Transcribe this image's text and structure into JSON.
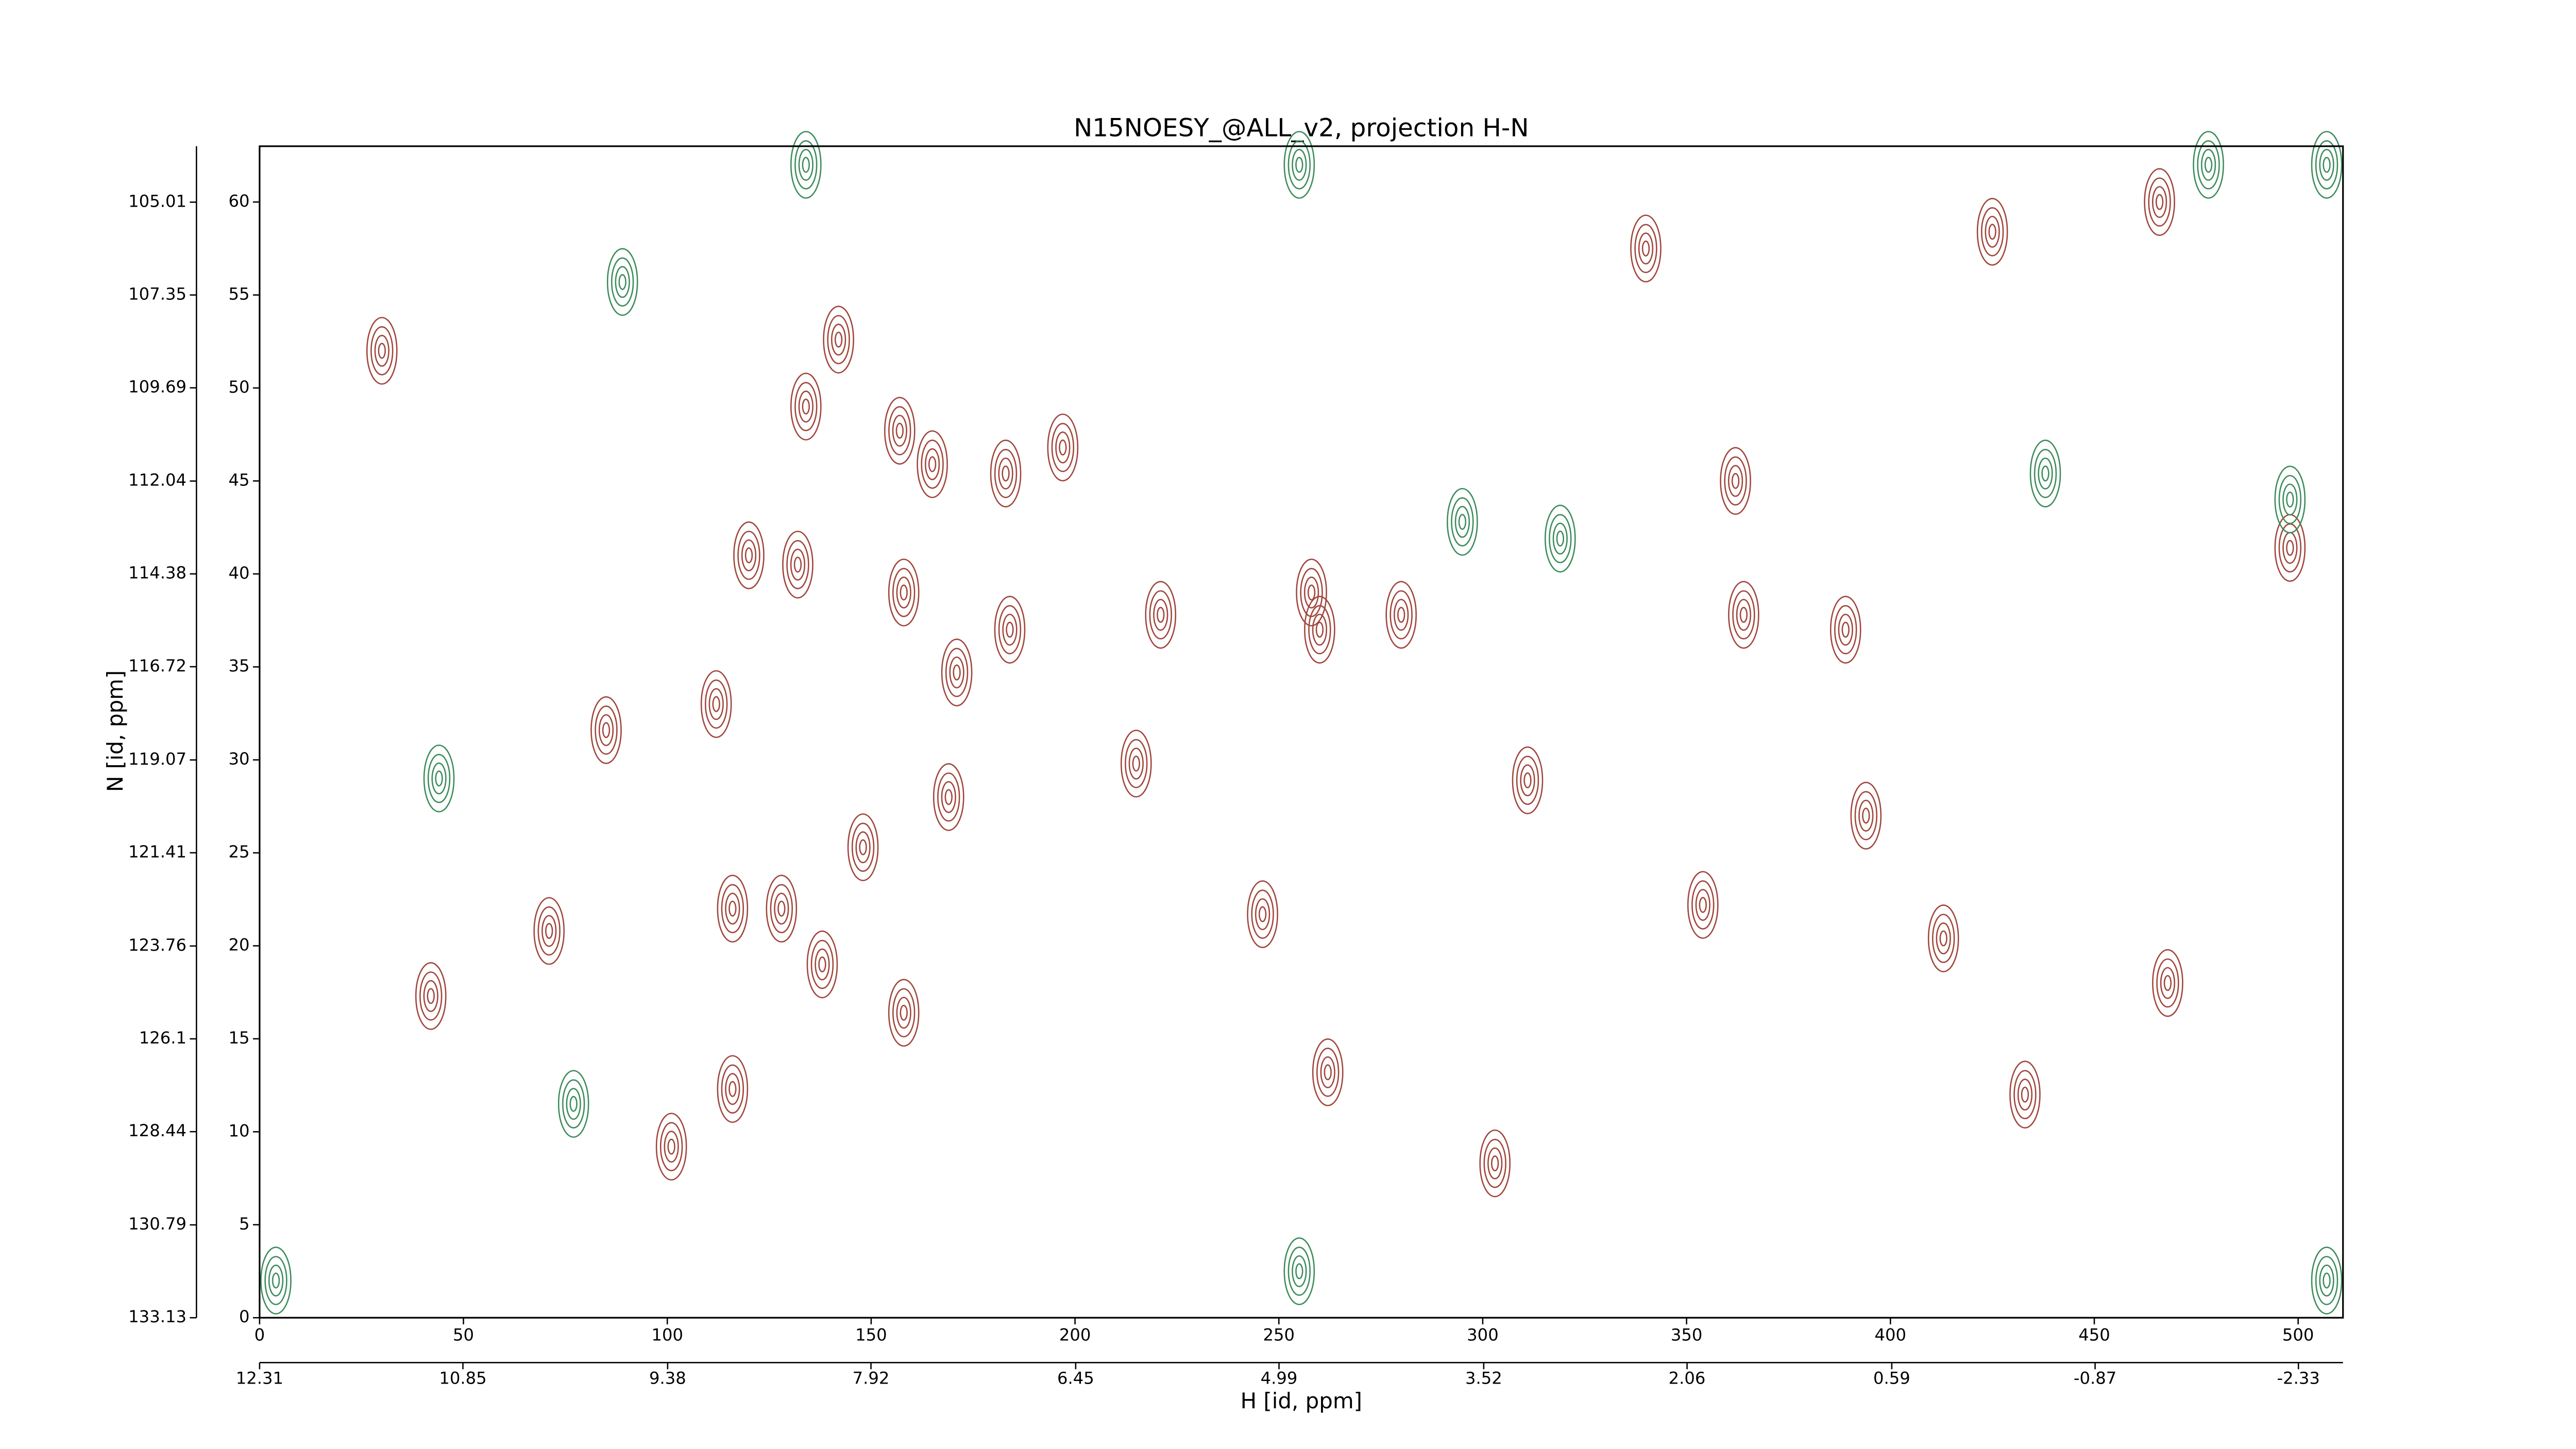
{
  "chart_data": {
    "type": "contour",
    "title": "N15NOESY_@ALL_v2, projection H-N",
    "xlabel": "H [id, ppm]",
    "ylabel": "N [id, ppm]",
    "xlim": [
      0,
      511
    ],
    "xticks": [
      0,
      50,
      100,
      150,
      200,
      250,
      300,
      350,
      400,
      450,
      500
    ],
    "x2lim": [
      12.31,
      -2.65
    ],
    "x2ticks": [
      12.31,
      10.85,
      9.38,
      7.92,
      6.45,
      4.99,
      3.52,
      2.06,
      0.59,
      -0.87,
      -2.33
    ],
    "ylim": [
      0,
      63
    ],
    "yticks": [
      0,
      5,
      10,
      15,
      20,
      25,
      30,
      35,
      40,
      45,
      50,
      55,
      60
    ],
    "y2lim": [
      133.13,
      103.6
    ],
    "y2ticks": [
      133.13,
      130.79,
      128.44,
      126.1,
      123.76,
      121.41,
      119.07,
      116.72,
      114.38,
      112.04,
      109.69,
      107.35,
      105.01
    ],
    "series": [
      {
        "color": "#a0463c",
        "x": [
          142,
          134,
          157,
          165,
          183,
          120,
          132,
          158,
          184,
          171,
          112,
          169,
          148,
          116,
          128,
          138,
          158,
          116,
          101,
          246,
          262,
          260,
          280,
          258,
          362,
          354,
          364,
          498,
          466,
          340,
          413,
          221,
          197,
          71,
          42,
          30,
          85,
          468,
          394,
          433,
          303,
          215,
          311,
          389,
          425
        ],
        "values": [
          52.6,
          49,
          47.7,
          45.9,
          45.4,
          41,
          40.5,
          39,
          37,
          34.7,
          33,
          28,
          25.3,
          22,
          22,
          19,
          16.4,
          12.3,
          9.2,
          21.7,
          13.2,
          37,
          37.8,
          39,
          45,
          22.2,
          37.8,
          41.4,
          60,
          57.5,
          20.4,
          37.8,
          46.8,
          20.8,
          17.3,
          52,
          31.6,
          18,
          27,
          12,
          8.3,
          29.8,
          28.9,
          37,
          58.4
        ]
      },
      {
        "color": "#3c8c5a",
        "x": [
          255,
          255,
          507,
          507,
          4,
          89,
          295,
          319,
          478,
          134,
          498,
          77,
          44,
          438
        ],
        "values": [
          62,
          2.5,
          62,
          2,
          2,
          55.7,
          42.8,
          41.9,
          62,
          62,
          44,
          11.5,
          29,
          45.4
        ]
      }
    ]
  }
}
